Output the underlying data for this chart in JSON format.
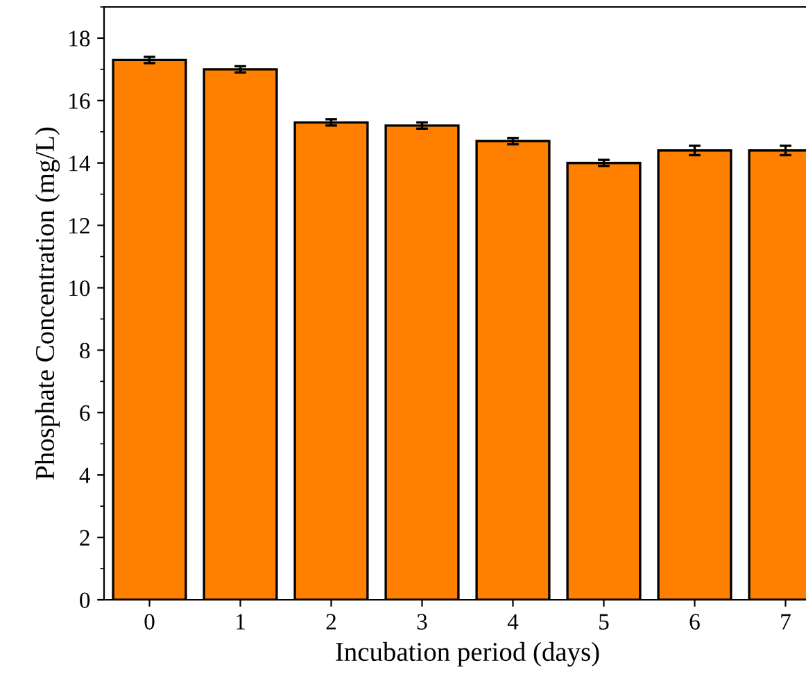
{
  "chart_data": {
    "type": "bar",
    "xlabel": "Incubation period (days)",
    "ylabel": "Phosphate Concentration (mg/L)",
    "categories": [
      "0",
      "1",
      "2",
      "3",
      "4",
      "5",
      "6",
      "7"
    ],
    "values": [
      17.3,
      17.0,
      15.3,
      15.2,
      14.7,
      14.0,
      14.4,
      14.4
    ],
    "errors": [
      0.1,
      0.1,
      0.1,
      0.1,
      0.1,
      0.1,
      0.15,
      0.15
    ],
    "color": "#ff8000",
    "ylim": [
      0,
      19
    ],
    "yticks": [
      0,
      2,
      4,
      6,
      8,
      10,
      12,
      14,
      16,
      18
    ],
    "grid": false,
    "legend": false
  }
}
